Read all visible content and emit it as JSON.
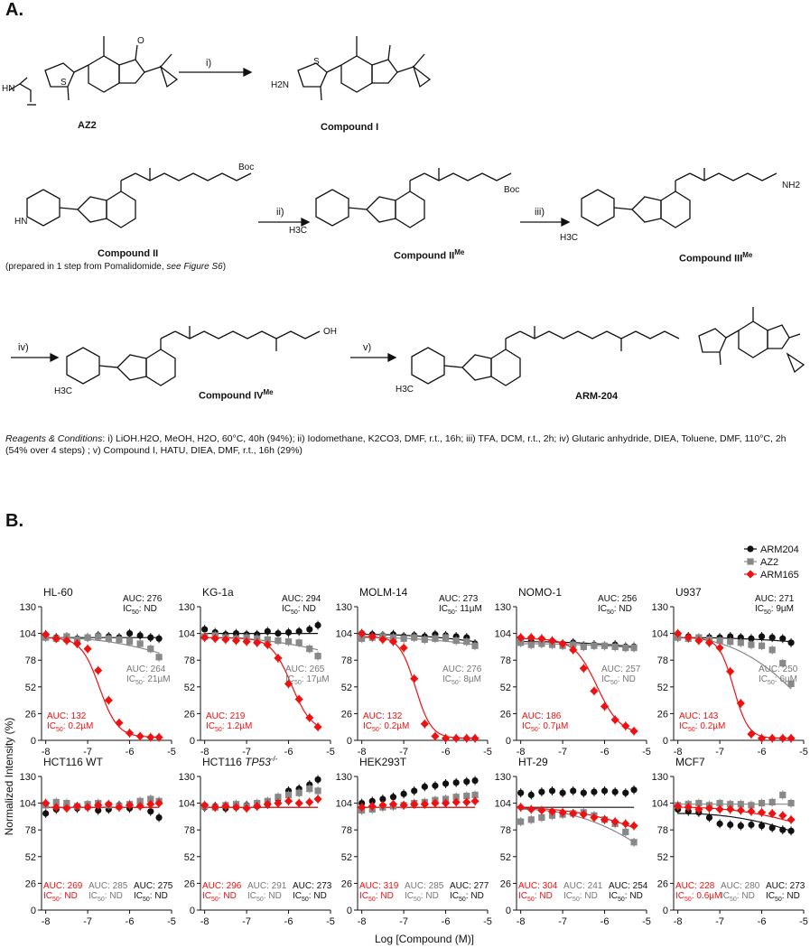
{
  "figure": {
    "panel_a_label": "A.",
    "panel_b_label": "B.",
    "compounds": {
      "az2": "AZ2",
      "compound_i": "Compound I",
      "compound_ii": "Compound II",
      "compound_ii_note": "(prepared in 1 step from Pomalidomide, ",
      "compound_ii_note_em": "see Figure S6",
      "compound_ii_note_end": ")",
      "compound_ii_me": "Compound II",
      "compound_iii_me": "Compound III",
      "compound_iv_me": "Compound IV",
      "me_sup": "Me",
      "arm204": "ARM-204"
    },
    "steps": [
      "i)",
      "ii)",
      "iii)",
      "iv)",
      "v)"
    ],
    "atom_labels": {
      "h2n": "H2N",
      "nh": "NH",
      "hn": "HN",
      "n": "N",
      "s": "S",
      "o": "O",
      "boc": "Boc",
      "nh2": "NH2",
      "h3c": "H3C",
      "oh": "OH",
      "h": "H"
    },
    "reagents_title": "Reagents & Conditions",
    "reagents_text": ": i) LiOH.H2O, MeOH, H2O, 60°C, 40h (94%); ii) Iodomethane, K2CO3, DMF, r.t., 16h; iii) TFA, DCM, r.t., 2h; iv) Glutaric anhydride, DIEA, Toluene, DMF, 110°C, 2h (54% over 4 steps) ; v) Compound I, HATU, DIEA, DMF, r.t., 16h (29%)"
  },
  "chart_data": {
    "type": "scatter",
    "ylabel": "Normalized Intensity (%)",
    "xlabel": "Log [Compound (M)]",
    "xlim": [
      -8.1,
      -5.0
    ],
    "ylim": [
      0,
      130
    ],
    "xticks": [
      -8,
      -7,
      -6,
      -5
    ],
    "yticks": [
      0,
      26,
      52,
      78,
      104,
      130
    ],
    "x": [
      -8.0,
      -7.75,
      -7.5,
      -7.25,
      -7.0,
      -6.75,
      -6.5,
      -6.25,
      -6.0,
      -5.75,
      -5.5,
      -5.3
    ],
    "legend": {
      "position": "top-right",
      "entries": [
        "ARM204",
        "AZ2",
        "ARM165"
      ]
    },
    "colors": {
      "ARM204": "#111111",
      "AZ2": "#888888",
      "ARM165": "#ee1111"
    },
    "panels": [
      {
        "title": "HL-60",
        "title_italic": "",
        "title_sup": "",
        "auc": {
          "ARM204": "AUC: 276",
          "AZ2": "AUC: 264",
          "ARM165": "AUC: 132"
        },
        "ic50": {
          "ARM204": "ND",
          "AZ2": "21µM",
          "ARM165": "0.2µM"
        },
        "series": {
          "ARM204": [
            102,
            100,
            101,
            99,
            100,
            102,
            101,
            100,
            104,
            102,
            100,
            99
          ],
          "AZ2": [
            100,
            99,
            101,
            98,
            100,
            101,
            99,
            98,
            96,
            94,
            89,
            81
          ],
          "ARM165": [
            103,
            99,
            97,
            94,
            89,
            68,
            39,
            17,
            7,
            4,
            3,
            3
          ]
        },
        "curves": {
          "ARM204": [
            100,
            100
          ],
          "AZ2": [
            100,
            85
          ],
          "ARM165": {
            "top": 100,
            "bottom": 3,
            "logic50": -6.72,
            "h": 2.0
          }
        }
      },
      {
        "title": "KG-1a",
        "title_italic": "",
        "title_sup": "",
        "auc": {
          "ARM204": "AUC: 294",
          "AZ2": "AUC: 265",
          "ARM165": "AUC: 219"
        },
        "ic50": {
          "ARM204": "ND",
          "AZ2": "17µM",
          "ARM165": "1.2µM"
        },
        "series": {
          "ARM204": [
            108,
            105,
            103,
            104,
            103,
            103,
            106,
            104,
            105,
            106,
            108,
            112
          ],
          "AZ2": [
            101,
            102,
            100,
            99,
            100,
            99,
            98,
            97,
            96,
            95,
            89,
            82
          ],
          "ARM165": [
            100,
            99,
            98,
            97,
            96,
            95,
            93,
            80,
            55,
            40,
            22,
            13
          ]
        },
        "curves": {
          "ARM204": [
            104,
            104
          ],
          "AZ2": [
            100,
            88
          ],
          "ARM165": {
            "top": 100,
            "bottom": 8,
            "logic50": -5.93,
            "h": 1.8
          }
        }
      },
      {
        "title": "MOLM-14",
        "title_italic": "",
        "title_sup": "",
        "auc": {
          "ARM204": "AUC: 273",
          "AZ2": "AUC: 276",
          "ARM165": "AUC: 132"
        },
        "ic50": {
          "ARM204": "11µM",
          "AZ2": "8µM",
          "ARM165": "0.2µM"
        },
        "series": {
          "ARM204": [
            104,
            103,
            102,
            103,
            101,
            102,
            101,
            103,
            102,
            101,
            100,
            94
          ],
          "AZ2": [
            99,
            100,
            101,
            100,
            99,
            100,
            98,
            99,
            100,
            97,
            96,
            92
          ],
          "ARM165": [
            104,
            101,
            98,
            96,
            90,
            60,
            16,
            4,
            2,
            2,
            2,
            2
          ]
        },
        "curves": {
          "ARM204": [
            103,
            96
          ],
          "AZ2": [
            100,
            93
          ],
          "ARM165": {
            "top": 101,
            "bottom": 2,
            "logic50": -6.72,
            "h": 2.3
          }
        }
      },
      {
        "title": "NOMO-1",
        "title_italic": "",
        "title_sup": "",
        "auc": {
          "ARM204": "AUC: 256",
          "AZ2": "AUC: 257",
          "ARM165": "AUC: 186"
        },
        "ic50": {
          "ARM204": "ND",
          "AZ2": "ND",
          "ARM165": "0.7µM"
        },
        "series": {
          "ARM204": [
            97,
            96,
            95,
            96,
            94,
            95,
            92,
            93,
            92,
            93,
            91,
            91
          ],
          "AZ2": [
            95,
            93,
            94,
            93,
            92,
            93,
            91,
            92,
            92,
            91,
            90,
            90
          ],
          "ARM165": [
            100,
            100,
            99,
            97,
            94,
            88,
            70,
            48,
            33,
            20,
            14,
            9
          ]
        },
        "curves": {
          "ARM204": [
            96,
            91
          ],
          "AZ2": [
            94,
            90
          ],
          "ARM165": {
            "top": 99,
            "bottom": 6,
            "logic50": -6.18,
            "h": 1.6
          }
        }
      },
      {
        "title": "U937",
        "title_italic": "",
        "title_sup": "",
        "auc": {
          "ARM204": "AUC: 271",
          "AZ2": "AUC: 250",
          "ARM165": "AUC: 143"
        },
        "ic50": {
          "ARM204": "9µM",
          "AZ2": "6µM",
          "ARM165": "0.2µM"
        },
        "series": {
          "ARM204": [
            100,
            101,
            99,
            100,
            100,
            101,
            100,
            99,
            101,
            100,
            99,
            95
          ],
          "AZ2": [
            100,
            99,
            100,
            98,
            97,
            96,
            95,
            93,
            92,
            88,
            75,
            55
          ],
          "ARM165": [
            104,
            100,
            97,
            95,
            90,
            67,
            36,
            6,
            2,
            2,
            2,
            2
          ]
        },
        "curves": {
          "ARM204": [
            100,
            96
          ],
          "AZ2": [
            100,
            50
          ],
          "ARM165": {
            "top": 100,
            "bottom": 2,
            "logic50": -6.67,
            "h": 2.5
          }
        }
      },
      {
        "title": "HCT116 WT",
        "title_italic": "",
        "title_sup": "",
        "auc": {
          "ARM204": "AUC: 275",
          "AZ2": "AUC: 285",
          "ARM165": "AUC: 269"
        },
        "ic50": {
          "ARM204": "ND",
          "AZ2": "ND",
          "ARM165": "ND"
        },
        "series": {
          "ARM204": [
            94,
            98,
            102,
            99,
            100,
            97,
            98,
            102,
            99,
            104,
            96,
            90
          ],
          "AZ2": [
            102,
            105,
            104,
            101,
            103,
            104,
            102,
            101,
            103,
            106,
            108,
            106
          ],
          "ARM165": [
            104,
            100,
            99,
            101,
            100,
            102,
            103,
            100,
            102,
            101,
            103,
            104
          ]
        },
        "curves": {
          "ARM204": [
            100,
            100
          ],
          "AZ2": [
            100,
            100
          ],
          "ARM165": [
            100,
            100
          ]
        }
      },
      {
        "title": "HCT116 ",
        "title_italic": "TP53",
        "title_sup": "-/-",
        "auc": {
          "ARM204": "AUC: 273",
          "AZ2": "AUC: 291",
          "ARM165": "AUC: 296"
        },
        "ic50": {
          "ARM204": "ND",
          "AZ2": "ND",
          "ARM165": "ND"
        },
        "series": {
          "ARM204": [
            100,
            101,
            99,
            100,
            102,
            101,
            103,
            108,
            116,
            118,
            122,
            127
          ],
          "AZ2": [
            101,
            100,
            102,
            103,
            101,
            104,
            106,
            110,
            112,
            114,
            118,
            116
          ],
          "ARM165": [
            102,
            100,
            101,
            100,
            99,
            101,
            103,
            104,
            106,
            104,
            105,
            108
          ]
        },
        "curves": {
          "ARM204": [
            100,
            100
          ],
          "AZ2": [
            100,
            100
          ],
          "ARM165": [
            100,
            100
          ]
        }
      },
      {
        "title": "HEK293T",
        "title_italic": "",
        "title_sup": "",
        "auc": {
          "ARM204": "AUC: 277",
          "AZ2": "AUC: 285",
          "ARM165": "AUC: 319"
        },
        "ic50": {
          "ARM204": "ND",
          "AZ2": "ND",
          "ARM165": "ND"
        },
        "series": {
          "ARM204": [
            104,
            106,
            108,
            110,
            113,
            116,
            120,
            121,
            123,
            124,
            125,
            126
          ],
          "AZ2": [
            97,
            98,
            100,
            101,
            102,
            104,
            105,
            107,
            108,
            110,
            111,
            112
          ],
          "ARM165": [
            100,
            101,
            102,
            103,
            102,
            103,
            103,
            104,
            104,
            105,
            105,
            106
          ]
        },
        "curves": {
          "ARM204": [
            100,
            100
          ],
          "AZ2": [
            100,
            100
          ],
          "ARM165": [
            100,
            100
          ]
        }
      },
      {
        "title": "HT-29",
        "title_italic": "",
        "title_sup": "",
        "auc": {
          "ARM204": "AUC: 254",
          "AZ2": "AUC: 241",
          "ARM165": "AUC: 304"
        },
        "ic50": {
          "ARM204": "ND",
          "AZ2": "ND",
          "ARM165": "ND"
        },
        "series": {
          "ARM204": [
            114,
            112,
            115,
            116,
            114,
            116,
            114,
            115,
            116,
            115,
            114,
            117
          ],
          "AZ2": [
            86,
            88,
            90,
            92,
            93,
            94,
            95,
            92,
            88,
            84,
            76,
            66
          ],
          "ARM165": [
            100,
            98,
            97,
            96,
            95,
            94,
            93,
            90,
            88,
            86,
            84,
            82
          ]
        },
        "curves": {
          "ARM204": [
            100,
            100
          ],
          "AZ2": [
            98,
            66
          ],
          "ARM165": [
            99,
            80
          ]
        }
      },
      {
        "title": "MCF7",
        "title_italic": "",
        "title_sup": "",
        "auc": {
          "ARM204": "AUC: 273",
          "AZ2": "AUC: 280",
          "ARM165": "AUC: 228"
        },
        "ic50": {
          "ARM204": "ND",
          "AZ2": "ND",
          "ARM165": "0.6µM"
        },
        "series": {
          "ARM204": [
            98,
            96,
            95,
            90,
            84,
            83,
            82,
            83,
            82,
            80,
            78,
            77
          ],
          "AZ2": [
            102,
            103,
            104,
            102,
            104,
            103,
            103,
            102,
            104,
            105,
            112,
            104
          ],
          "ARM165": [
            101,
            100,
            98,
            99,
            98,
            98,
            97,
            96,
            95,
            94,
            92,
            88
          ]
        },
        "curves": {
          "ARM204": [
            94,
            77
          ],
          "AZ2": [
            103,
            103
          ],
          "ARM165": [
            100,
            86
          ]
        }
      }
    ]
  }
}
